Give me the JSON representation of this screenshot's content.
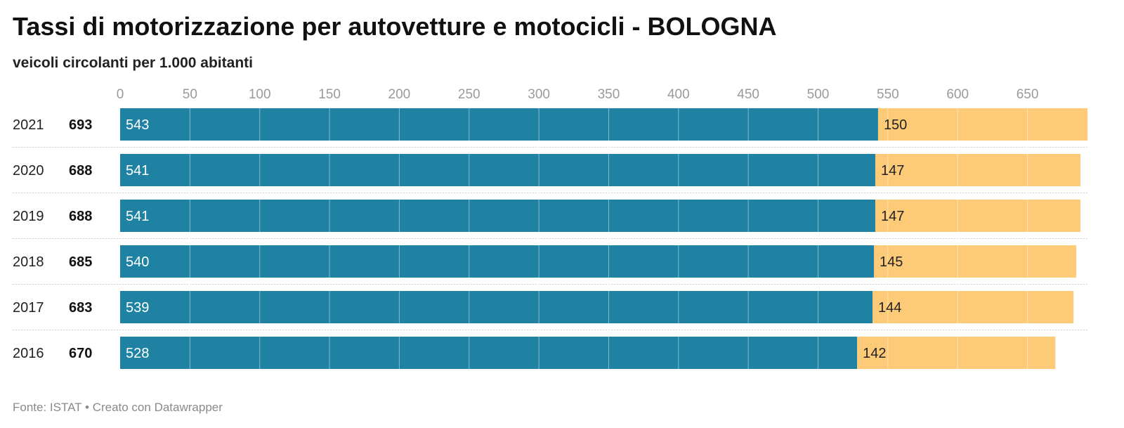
{
  "title": "Tassi di motorizzazione per autovetture e motocicli - BOLOGNA",
  "subtitle": "veicoli circolanti per 1.000 abitanti",
  "footer": {
    "source": "Fonte: ISTAT",
    "separator": "•",
    "credit": "Creato con Datawrapper"
  },
  "colors": {
    "autovetture": "#1f82a3",
    "motocicli": "#fdcb78",
    "gridline_on_bar": "#ffffff"
  },
  "chart_data": {
    "type": "bar",
    "orientation": "horizontal",
    "stacked": true,
    "title": "Tassi di motorizzazione per autovetture e motocicli - BOLOGNA",
    "subtitle": "veicoli circolanti per 1.000 abitanti",
    "categories": [
      "2021",
      "2020",
      "2019",
      "2018",
      "2017",
      "2016"
    ],
    "totals": [
      693,
      688,
      688,
      685,
      683,
      670
    ],
    "series": [
      {
        "values": [
          543,
          541,
          541,
          540,
          539,
          528
        ]
      },
      {
        "values": [
          150,
          147,
          147,
          145,
          144,
          142
        ]
      }
    ],
    "xticks": [
      0,
      50,
      100,
      150,
      200,
      250,
      300,
      350,
      400,
      450,
      500,
      550,
      600,
      650
    ],
    "xlim": [
      0,
      693
    ],
    "grid": true,
    "xlabel": "",
    "ylabel": ""
  }
}
